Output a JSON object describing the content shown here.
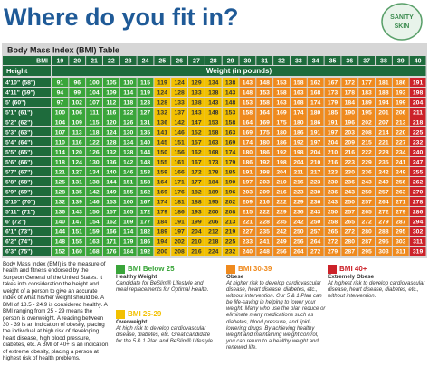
{
  "header": {
    "title": "Where do you fit in?",
    "logo_top": "SANITY",
    "logo_bottom": "SKIN"
  },
  "table": {
    "title": "Body Mass Index (BMI) Table",
    "bmi_label": "BMI",
    "height_label": "Height",
    "weight_label": "Weight (in pounds)",
    "bmi": [
      19,
      20,
      21,
      22,
      23,
      24,
      25,
      26,
      27,
      28,
      29,
      30,
      31,
      32,
      33,
      34,
      35,
      36,
      37,
      38,
      39,
      40
    ],
    "column_colors": [
      "#3aa53a",
      "#3aa53a",
      "#3aa53a",
      "#3aa53a",
      "#3aa53a",
      "#3aa53a",
      "#f2c000",
      "#f2c000",
      "#f2c000",
      "#f2c000",
      "#f2c000",
      "#ef8a1e",
      "#ef8a1e",
      "#ef8a1e",
      "#ef8a1e",
      "#ef8a1e",
      "#ef8a1e",
      "#ef8a1e",
      "#ef8a1e",
      "#ef8a1e",
      "#ef8a1e",
      "#cc2229"
    ],
    "rows": [
      {
        "height": "4'10\" (58\")",
        "weights": [
          91,
          96,
          100,
          105,
          110,
          115,
          119,
          124,
          129,
          134,
          138,
          143,
          148,
          153,
          158,
          162,
          167,
          172,
          177,
          181,
          186,
          191
        ]
      },
      {
        "height": "4'11\" (59\")",
        "weights": [
          94,
          99,
          104,
          109,
          114,
          119,
          124,
          128,
          133,
          138,
          143,
          148,
          153,
          158,
          163,
          168,
          173,
          178,
          183,
          188,
          193,
          198
        ]
      },
      {
        "height": "5' (60\")",
        "weights": [
          97,
          102,
          107,
          112,
          118,
          123,
          128,
          133,
          138,
          143,
          148,
          153,
          158,
          163,
          168,
          174,
          179,
          184,
          189,
          194,
          199,
          204
        ]
      },
      {
        "height": "5'1\" (61\")",
        "weights": [
          100,
          106,
          111,
          116,
          122,
          127,
          132,
          137,
          143,
          148,
          153,
          158,
          164,
          169,
          174,
          180,
          185,
          190,
          195,
          201,
          206,
          211
        ]
      },
      {
        "height": "5'2\" (62\")",
        "weights": [
          104,
          109,
          115,
          120,
          126,
          131,
          136,
          142,
          147,
          153,
          158,
          164,
          169,
          175,
          180,
          186,
          191,
          196,
          202,
          207,
          213,
          218
        ]
      },
      {
        "height": "5'3\" (63\")",
        "weights": [
          107,
          113,
          118,
          124,
          130,
          135,
          141,
          146,
          152,
          158,
          163,
          169,
          175,
          180,
          186,
          191,
          197,
          203,
          208,
          214,
          220,
          225
        ]
      },
      {
        "height": "5'4\" (64\")",
        "weights": [
          110,
          116,
          122,
          128,
          134,
          140,
          145,
          151,
          157,
          163,
          169,
          174,
          180,
          186,
          192,
          197,
          204,
          209,
          215,
          221,
          227,
          232
        ]
      },
      {
        "height": "5'5\" (65\")",
        "weights": [
          114,
          120,
          126,
          132,
          138,
          144,
          150,
          156,
          162,
          168,
          174,
          180,
          186,
          192,
          198,
          204,
          210,
          216,
          222,
          228,
          234,
          240
        ]
      },
      {
        "height": "5'6\" (66\")",
        "weights": [
          118,
          124,
          130,
          136,
          142,
          148,
          155,
          161,
          167,
          173,
          179,
          186,
          192,
          198,
          204,
          210,
          216,
          223,
          229,
          235,
          241,
          247
        ]
      },
      {
        "height": "5'7\" (67\")",
        "weights": [
          121,
          127,
          134,
          140,
          146,
          153,
          159,
          166,
          172,
          178,
          185,
          191,
          198,
          204,
          211,
          217,
          223,
          230,
          236,
          242,
          249,
          255
        ]
      },
      {
        "height": "5'8\" (68\")",
        "weights": [
          125,
          131,
          138,
          144,
          151,
          158,
          164,
          171,
          177,
          184,
          190,
          197,
          203,
          210,
          216,
          223,
          230,
          236,
          243,
          249,
          256,
          262
        ]
      },
      {
        "height": "5'9\" (69\")",
        "weights": [
          128,
          135,
          142,
          149,
          155,
          162,
          169,
          176,
          182,
          189,
          196,
          203,
          209,
          216,
          223,
          230,
          236,
          243,
          250,
          257,
          263,
          270
        ]
      },
      {
        "height": "5'10\" (70\")",
        "weights": [
          132,
          139,
          146,
          153,
          160,
          167,
          174,
          181,
          188,
          195,
          202,
          209,
          216,
          222,
          229,
          236,
          243,
          250,
          257,
          264,
          271,
          278
        ]
      },
      {
        "height": "5'11\" (71\")",
        "weights": [
          136,
          143,
          150,
          157,
          165,
          172,
          179,
          186,
          193,
          200,
          208,
          215,
          222,
          229,
          236,
          243,
          250,
          257,
          265,
          272,
          279,
          286
        ]
      },
      {
        "height": "6' (72\")",
        "weights": [
          140,
          147,
          154,
          162,
          169,
          177,
          184,
          191,
          199,
          206,
          213,
          221,
          228,
          235,
          242,
          250,
          258,
          265,
          272,
          279,
          287,
          294
        ]
      },
      {
        "height": "6'1\" (73\")",
        "weights": [
          144,
          151,
          159,
          166,
          174,
          182,
          189,
          197,
          204,
          212,
          219,
          227,
          235,
          242,
          250,
          257,
          265,
          272,
          280,
          288,
          295,
          302
        ]
      },
      {
        "height": "6'2\" (74\")",
        "weights": [
          148,
          155,
          163,
          171,
          179,
          186,
          194,
          202,
          210,
          218,
          225,
          233,
          241,
          249,
          256,
          264,
          272,
          280,
          287,
          295,
          303,
          311
        ]
      },
      {
        "height": "6'3\" (75\")",
        "weights": [
          152,
          160,
          168,
          176,
          184,
          192,
          200,
          208,
          216,
          224,
          232,
          240,
          248,
          256,
          264,
          272,
          279,
          287,
          295,
          303,
          311,
          319
        ]
      }
    ]
  },
  "description": "Body Mass Index (BMI) is the measure of health and fitness endorsed by the Surgeon General of the United States. It takes into consideration the height and weight of a person to give an accurate index of what his/her weight should be. A BMI of 18.5 - 24.9 is considered healthy. A BMI ranging from 25 - 29 means the person is overweight. A reading between 30 - 39 is an indication of obesity, placing the individual at high risk of developing heart disease, high blood pressure, diabetes, etc. A BMI of 40+ is an indication of extreme obesity, placing a person at highest risk of health problems.",
  "legend": [
    {
      "title": "BMI Below 25",
      "subtitle": "Healthy Weight",
      "text": "Candidate for BeSlim® Lifestyle and meal replacements for Optimal Health.",
      "color": "#3aa53a"
    },
    {
      "title": "BMI 25-29",
      "subtitle": "Overweight",
      "text": "At high risk to develop cardiovascular disease, diabetes, etc. Great candidate for the 5 & 1 Plan and BeSlim® Lifestyle.",
      "color": "#f2c000"
    },
    {
      "title": "BMI 30-39",
      "subtitle": "Obese",
      "text": "At higher risk to develop cardiovascular disease, heart disease, diabetes, etc., without intervention. Our 5 & 1 Plan can be life-saving in helping to lower your weight. Many who use the plan reduce or eliminate many medications such as diabetes, blood pressure, and lipid-lowering drugs. By achieving healthy weight and maintaining weight control, you can return to a healthy weight and renewed life.",
      "color": "#ef8a1e"
    },
    {
      "title": "BMI 40+",
      "subtitle": "Extremely Obese",
      "text": "At highest risk to develop cardiovascular disease, heart disease, diabetes, etc., without intervention.",
      "color": "#cc2229"
    }
  ]
}
